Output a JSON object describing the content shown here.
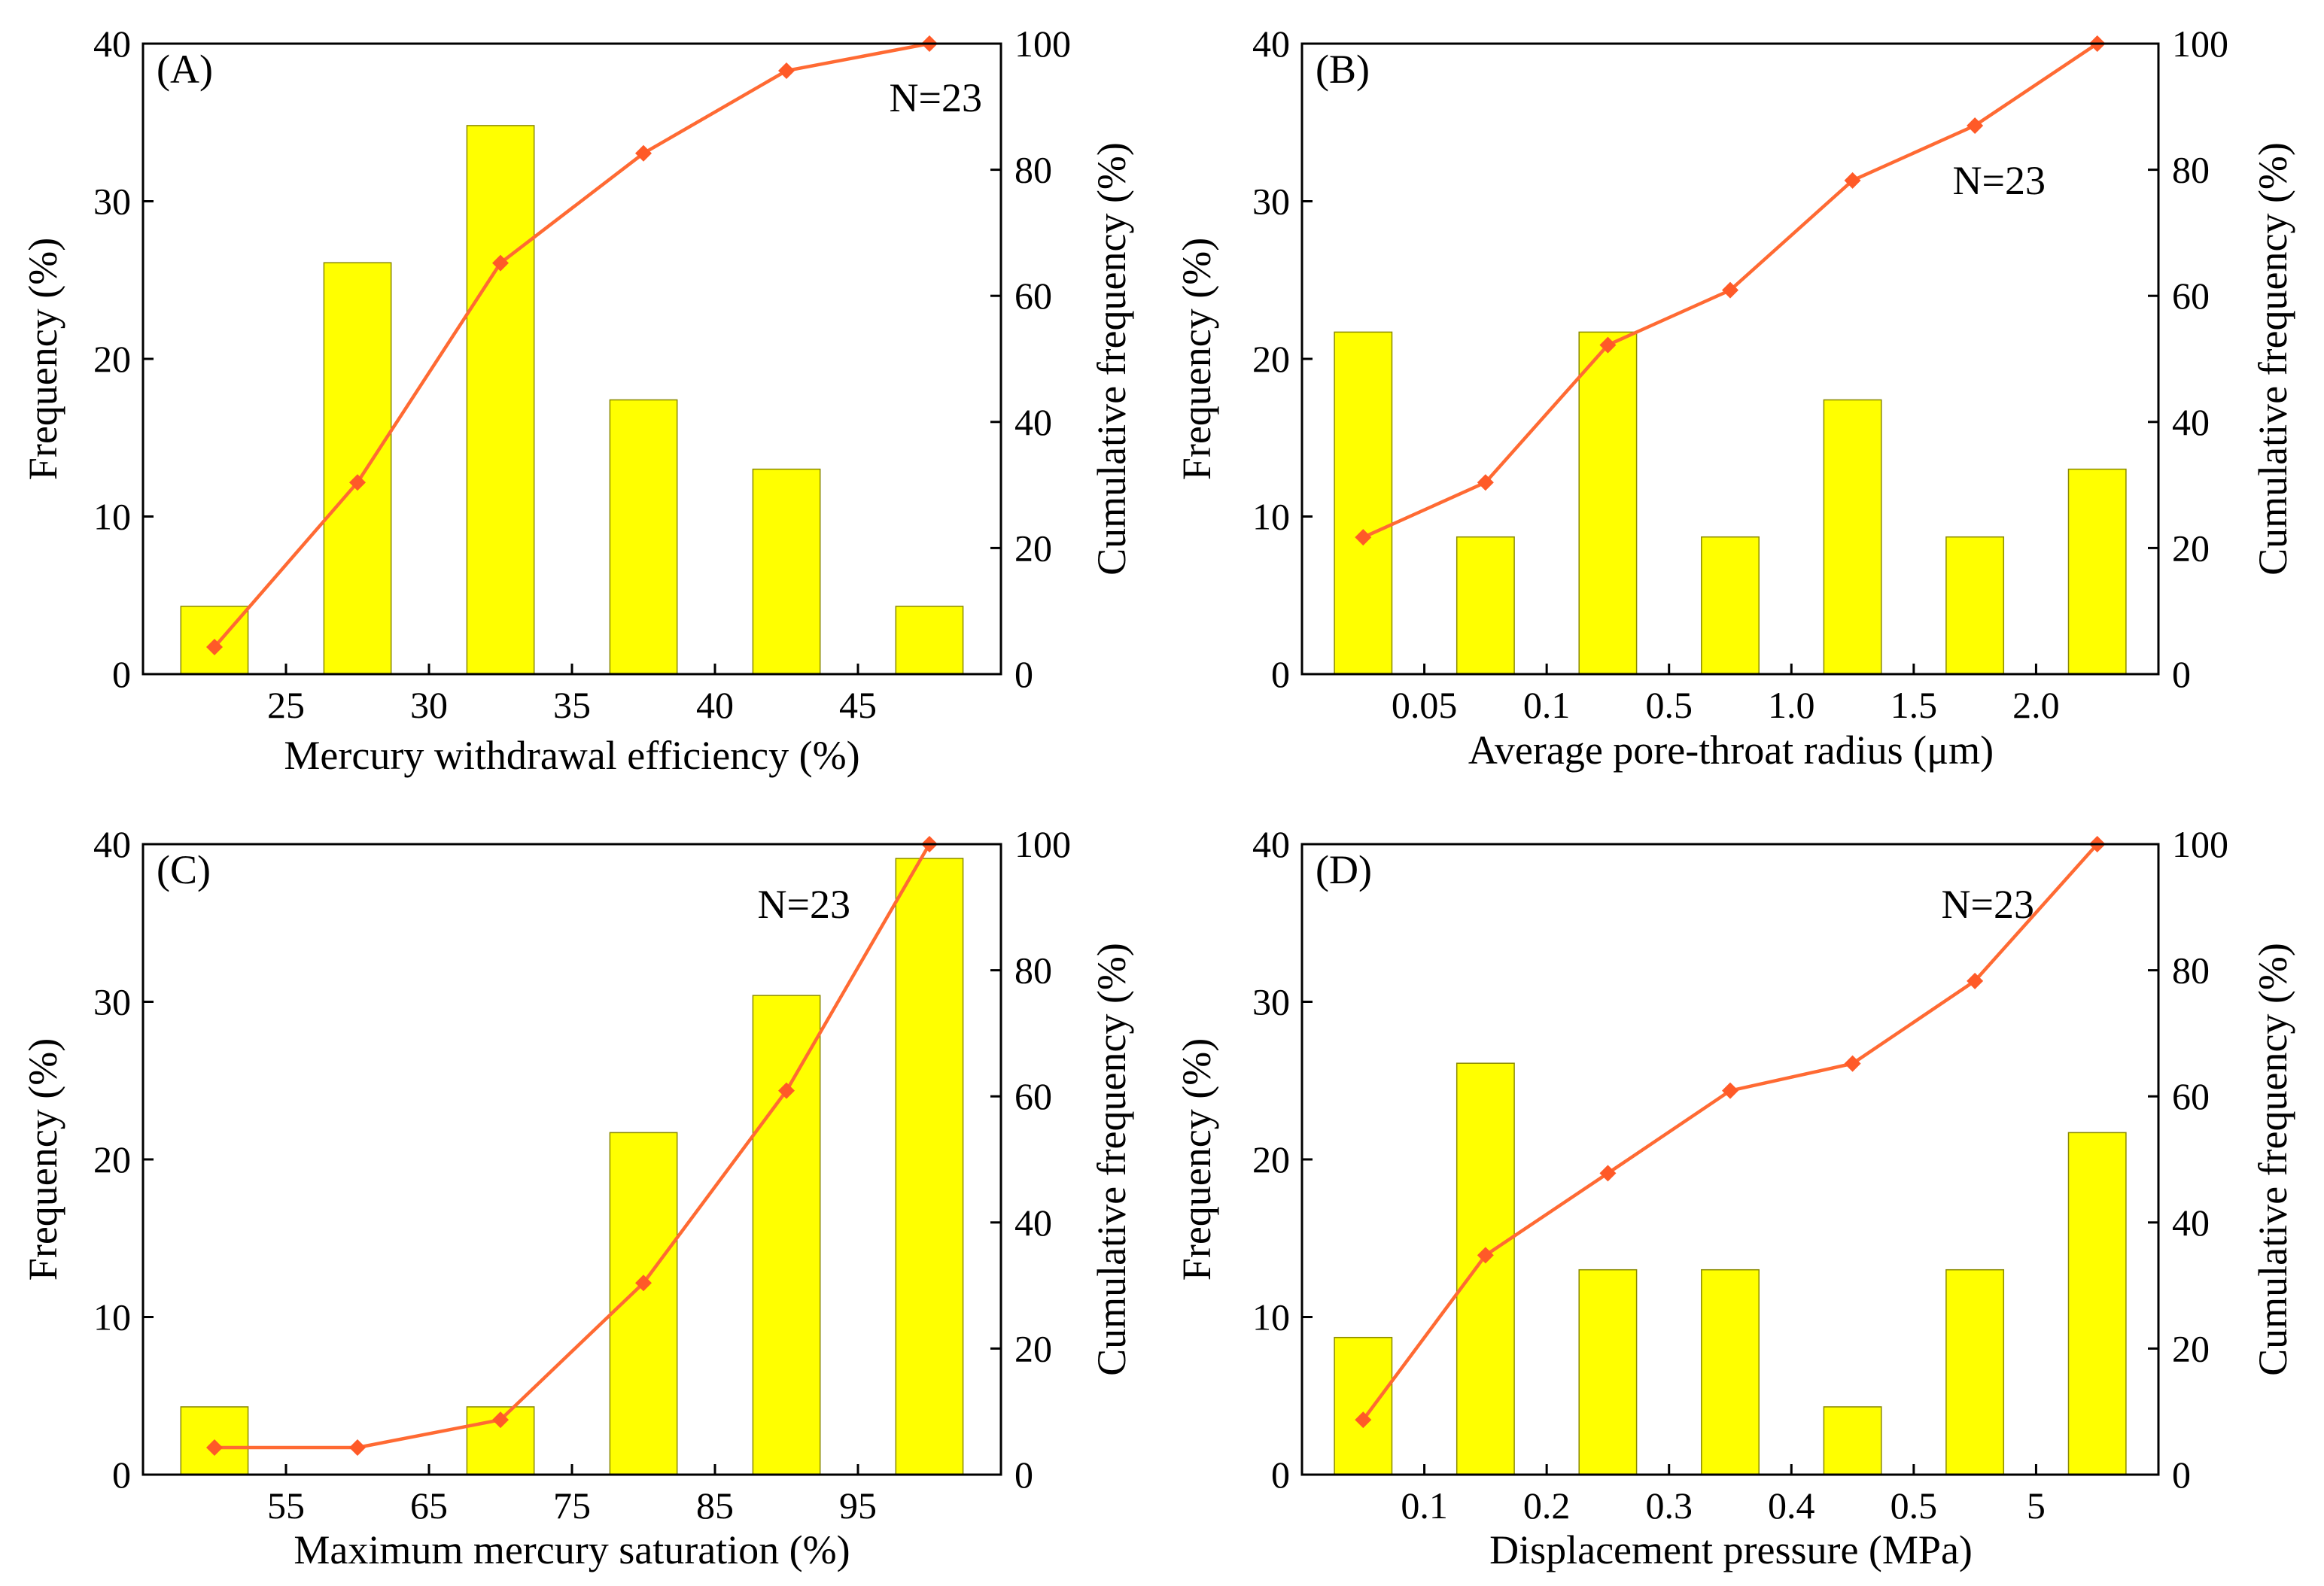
{
  "chart_data": [
    {
      "type": "bar",
      "panel_label": "(A)",
      "annotation": "N=23",
      "xlabel": "Mercury withdrawal efficiency (%)",
      "ylabel": "Frequency (%)",
      "y2label": "Cumulative frequency (%)",
      "ylim": [
        0,
        40
      ],
      "y2lim": [
        0,
        100
      ],
      "yticks": [
        "0",
        "10",
        "20",
        "30",
        "40"
      ],
      "y2ticks": [
        "0",
        "20",
        "40",
        "60",
        "80",
        "100"
      ],
      "xticks": [
        "25",
        "30",
        "35",
        "40",
        "45"
      ],
      "bar_count": 6,
      "series": [
        {
          "name": "Frequency",
          "values": [
            4.3,
            26.1,
            34.8,
            17.4,
            13.0,
            4.3
          ]
        },
        {
          "name": "Cumulative frequency",
          "axis": "right",
          "values": [
            4.3,
            30.4,
            65.2,
            82.6,
            95.7,
            100
          ]
        }
      ]
    },
    {
      "type": "bar",
      "panel_label": "(B)",
      "annotation": "N=23",
      "xlabel": "Average pore-throat radius (μm)",
      "ylabel": "Frequency (%)",
      "y2label": "Cumulative frequency (%)",
      "ylim": [
        0,
        40
      ],
      "y2lim": [
        0,
        100
      ],
      "yticks": [
        "0",
        "10",
        "20",
        "30",
        "40"
      ],
      "y2ticks": [
        "0",
        "20",
        "40",
        "60",
        "80",
        "100"
      ],
      "xticks": [
        "0.05",
        "0.1",
        "0.5",
        "1.0",
        "1.5",
        "2.0"
      ],
      "bar_count": 7,
      "series": [
        {
          "name": "Frequency",
          "values": [
            21.7,
            8.7,
            21.7,
            8.7,
            17.4,
            8.7,
            13.0
          ]
        },
        {
          "name": "Cumulative frequency",
          "axis": "right",
          "values": [
            21.7,
            30.4,
            52.2,
            60.9,
            78.3,
            87.0,
            100
          ]
        }
      ]
    },
    {
      "type": "bar",
      "panel_label": "(C)",
      "annotation": "N=23",
      "xlabel": "Maximum mercury saturation (%)",
      "ylabel": "Frequency (%)",
      "y2label": "Cumulative frequency (%)",
      "ylim": [
        0,
        40
      ],
      "y2lim": [
        0,
        100
      ],
      "yticks": [
        "0",
        "10",
        "20",
        "30",
        "40"
      ],
      "y2ticks": [
        "0",
        "20",
        "40",
        "60",
        "80",
        "100"
      ],
      "xticks": [
        "55",
        "65",
        "75",
        "85",
        "95"
      ],
      "bar_count": 6,
      "series": [
        {
          "name": "Frequency",
          "values": [
            4.3,
            0,
            4.3,
            21.7,
            30.4,
            39.1
          ]
        },
        {
          "name": "Cumulative frequency",
          "axis": "right",
          "values": [
            4.3,
            4.3,
            8.7,
            30.4,
            60.9,
            100
          ]
        }
      ]
    },
    {
      "type": "bar",
      "panel_label": "(D)",
      "annotation": "N=23",
      "xlabel": "Displacement pressure (MPa)",
      "ylabel": "Frequency (%)",
      "y2label": "Cumulative frequency (%)",
      "ylim": [
        0,
        40
      ],
      "y2lim": [
        0,
        100
      ],
      "yticks": [
        "0",
        "10",
        "20",
        "30",
        "40"
      ],
      "y2ticks": [
        "0",
        "20",
        "40",
        "60",
        "80",
        "100"
      ],
      "xticks": [
        "0.1",
        "0.2",
        "0.3",
        "0.4",
        "0.5",
        "5"
      ],
      "bar_count": 7,
      "series": [
        {
          "name": "Frequency",
          "values": [
            8.7,
            26.1,
            13.0,
            13.0,
            4.3,
            13.0,
            21.7
          ]
        },
        {
          "name": "Cumulative frequency",
          "axis": "right",
          "values": [
            8.7,
            34.8,
            47.8,
            60.9,
            65.2,
            78.3,
            100
          ]
        }
      ]
    }
  ]
}
